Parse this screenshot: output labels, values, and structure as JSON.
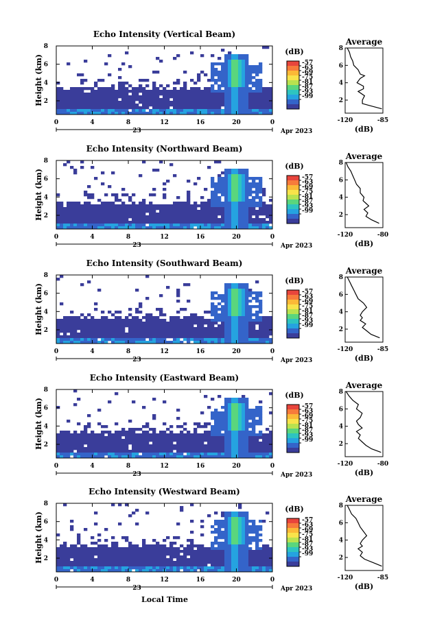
{
  "figure": {
    "x_axis_title": "Local Time",
    "date_label": "23",
    "month_label": "Apr 2023"
  },
  "chart_data": [
    {
      "type": "heatmap",
      "title": "Echo Intensity (Vertical Beam)",
      "ylabel": "Height (km)",
      "x_ticks": [
        "0",
        "4",
        "8",
        "12",
        "16",
        "20",
        "0"
      ],
      "y_ticks": [
        "2",
        "4",
        "6",
        "8"
      ],
      "xlim": [
        0,
        24
      ],
      "ylim": [
        0.5,
        8
      ],
      "colorbar": {
        "unit": "(dB)",
        "ticks": [
          "-57",
          "-63",
          "-69",
          "-75",
          "-81",
          "-87",
          "-93",
          "-99"
        ]
      },
      "average_profile": {
        "title": "Average",
        "xlabel": "(dB)",
        "x_ticks": [
          "-120",
          "-85"
        ],
        "xlim": [
          -120,
          -85
        ],
        "y_ticks": [
          "2",
          "4",
          "6",
          "8"
        ],
        "height": [
          1.0,
          1.3,
          1.6,
          2.0,
          2.5,
          3.0,
          3.3,
          3.6,
          4.0,
          4.5,
          4.8,
          5.0,
          5.5,
          6.0,
          6.5,
          7.0,
          7.5,
          8.0
        ],
        "value": [
          -86,
          -95,
          -104,
          -104,
          -102,
          -108,
          -103,
          -103,
          -109,
          -106,
          -102,
          -106,
          -108,
          -112,
          -113,
          -115,
          -116,
          -118
        ]
      }
    },
    {
      "type": "heatmap",
      "title": "Echo Intensity (Northward Beam)",
      "ylabel": "Height (km)",
      "x_ticks": [
        "0",
        "4",
        "8",
        "12",
        "16",
        "20",
        "0"
      ],
      "y_ticks": [
        "2",
        "4",
        "6",
        "8"
      ],
      "xlim": [
        0,
        24
      ],
      "ylim": [
        0.5,
        8
      ],
      "colorbar": {
        "unit": "(dB)",
        "ticks": [
          "-57",
          "-63",
          "-69",
          "-75",
          "-81",
          "-87",
          "-93",
          "-99"
        ]
      },
      "average_profile": {
        "title": "Average",
        "xlabel": "(dB)",
        "x_ticks": [
          "-120",
          "-80"
        ],
        "xlim": [
          -120,
          -80
        ],
        "y_ticks": [
          "2",
          "4",
          "6",
          "8"
        ],
        "height": [
          1.0,
          1.4,
          1.8,
          2.2,
          2.6,
          3.0,
          3.3,
          3.6,
          4.0,
          4.5,
          5.0,
          5.5,
          6.0,
          6.5,
          7.0,
          7.5,
          8.0
        ],
        "value": [
          -84,
          -92,
          -98,
          -96,
          -100,
          -95,
          -98,
          -101,
          -100,
          -104,
          -104,
          -108,
          -110,
          -112,
          -114,
          -117,
          -119
        ]
      }
    },
    {
      "type": "heatmap",
      "title": "Echo Intensity (Southward Beam)",
      "ylabel": "Height (km)",
      "x_ticks": [
        "0",
        "4",
        "8",
        "12",
        "16",
        "20",
        "0"
      ],
      "y_ticks": [
        "2",
        "4",
        "6",
        "8"
      ],
      "xlim": [
        0,
        24
      ],
      "ylim": [
        0.5,
        8
      ],
      "colorbar": {
        "unit": "(dB)",
        "ticks": [
          "-57",
          "-63",
          "-69",
          "-75",
          "-81",
          "-87",
          "-93",
          "-99"
        ]
      },
      "average_profile": {
        "title": "Average",
        "xlabel": "(dB)",
        "x_ticks": [
          "-120",
          "-85"
        ],
        "xlim": [
          -120,
          -85
        ],
        "y_ticks": [
          "2",
          "4",
          "6",
          "8"
        ],
        "height": [
          1.0,
          1.4,
          1.8,
          2.2,
          2.6,
          3.0,
          3.3,
          3.6,
          4.0,
          4.5,
          5.0,
          5.5,
          6.0,
          6.5,
          7.0,
          7.5,
          8.0
        ],
        "value": [
          -88,
          -96,
          -100,
          -104,
          -101,
          -106,
          -104,
          -106,
          -104,
          -100,
          -103,
          -108,
          -110,
          -112,
          -114,
          -116,
          -118
        ]
      }
    },
    {
      "type": "heatmap",
      "title": "Echo Intensity (Eastward Beam)",
      "ylabel": "Height (km)",
      "x_ticks": [
        "0",
        "4",
        "8",
        "12",
        "16",
        "20",
        "0"
      ],
      "y_ticks": [
        "2",
        "4",
        "6",
        "8"
      ],
      "xlim": [
        0,
        24
      ],
      "ylim": [
        0.5,
        8
      ],
      "colorbar": {
        "unit": "(dB)",
        "ticks": [
          "-57",
          "-63",
          "-69",
          "-75",
          "-81",
          "-87",
          "-93",
          "-99"
        ]
      },
      "average_profile": {
        "title": "Average",
        "xlabel": "(dB)",
        "x_ticks": [
          "-120",
          "-80"
        ],
        "xlim": [
          -120,
          -80
        ],
        "y_ticks": [
          "2",
          "4",
          "6",
          "8"
        ],
        "height": [
          1.0,
          1.4,
          1.8,
          2.2,
          2.6,
          3.0,
          3.4,
          3.8,
          4.2,
          4.6,
          5.0,
          5.5,
          6.0,
          6.5,
          7.0,
          7.5,
          8.0
        ],
        "value": [
          -82,
          -92,
          -98,
          -102,
          -106,
          -104,
          -108,
          -102,
          -106,
          -108,
          -104,
          -102,
          -108,
          -106,
          -112,
          -116,
          -119
        ]
      }
    },
    {
      "type": "heatmap",
      "title": "Echo Intensity (Westward Beam)",
      "ylabel": "Height (km)",
      "x_ticks": [
        "0",
        "4",
        "8",
        "12",
        "16",
        "20",
        "0"
      ],
      "y_ticks": [
        "2",
        "4",
        "6",
        "8"
      ],
      "xlim": [
        0,
        24
      ],
      "ylim": [
        0.5,
        8
      ],
      "colorbar": {
        "unit": "(dB)",
        "ticks": [
          "-57",
          "-63",
          "-69",
          "-75",
          "-81",
          "-87",
          "-93",
          "-99"
        ]
      },
      "average_profile": {
        "title": "Average",
        "xlabel": "(dB)",
        "x_ticks": [
          "-120",
          "-85"
        ],
        "xlim": [
          -120,
          -85
        ],
        "y_ticks": [
          "2",
          "4",
          "6",
          "8"
        ],
        "height": [
          1.0,
          1.4,
          1.8,
          2.2,
          2.6,
          3.0,
          3.3,
          3.6,
          4.0,
          4.5,
          5.0,
          5.5,
          6.0,
          6.5,
          7.0,
          7.5,
          8.0
        ],
        "value": [
          -86,
          -94,
          -102,
          -106,
          -104,
          -108,
          -104,
          -106,
          -104,
          -100,
          -103,
          -106,
          -108,
          -110,
          -114,
          -116,
          -118
        ]
      }
    }
  ]
}
